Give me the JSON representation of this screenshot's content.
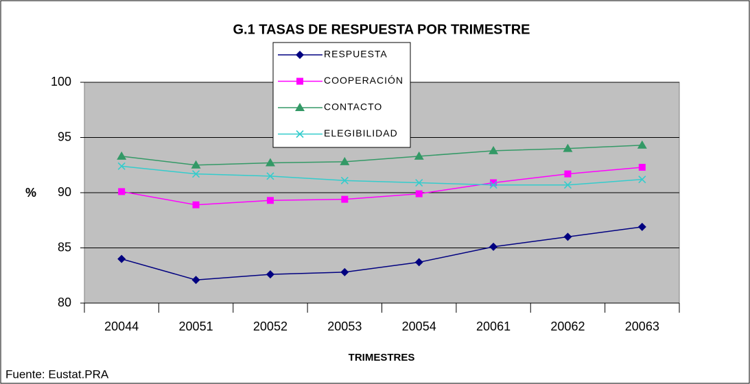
{
  "chart_data": {
    "type": "line",
    "title": "G.1 TASAS DE RESPUESTA POR TRIMESTRE",
    "x_label": "TRIMESTRES",
    "y_label": "%",
    "source": "Fuente: Eustat.PRA",
    "categories": [
      "20044",
      "20051",
      "20052",
      "20053",
      "20054",
      "20061",
      "20062",
      "20063"
    ],
    "series": [
      {
        "name": "RESPUESTA",
        "color": "#000080",
        "marker": "diamond",
        "values": [
          84.0,
          82.1,
          82.6,
          82.8,
          83.7,
          85.1,
          86.0,
          86.9
        ]
      },
      {
        "name": "COOPERACIÓN",
        "color": "#ff00ff",
        "marker": "square",
        "values": [
          90.1,
          88.9,
          89.3,
          89.4,
          89.9,
          90.9,
          91.7,
          92.3
        ]
      },
      {
        "name": "CONTACTO",
        "color": "#339966",
        "marker": "triangle",
        "values": [
          93.3,
          92.5,
          92.7,
          92.8,
          93.3,
          93.8,
          94.0,
          94.3
        ]
      },
      {
        "name": "ELEGIBILIDAD",
        "color": "#33cccc",
        "marker": "x",
        "values": [
          92.4,
          91.7,
          91.5,
          91.1,
          90.9,
          90.7,
          90.7,
          91.2
        ]
      }
    ],
    "ylim": [
      80,
      100
    ],
    "yticks": [
      80,
      85,
      90,
      95,
      100
    ],
    "grid": true,
    "legend": "top"
  }
}
